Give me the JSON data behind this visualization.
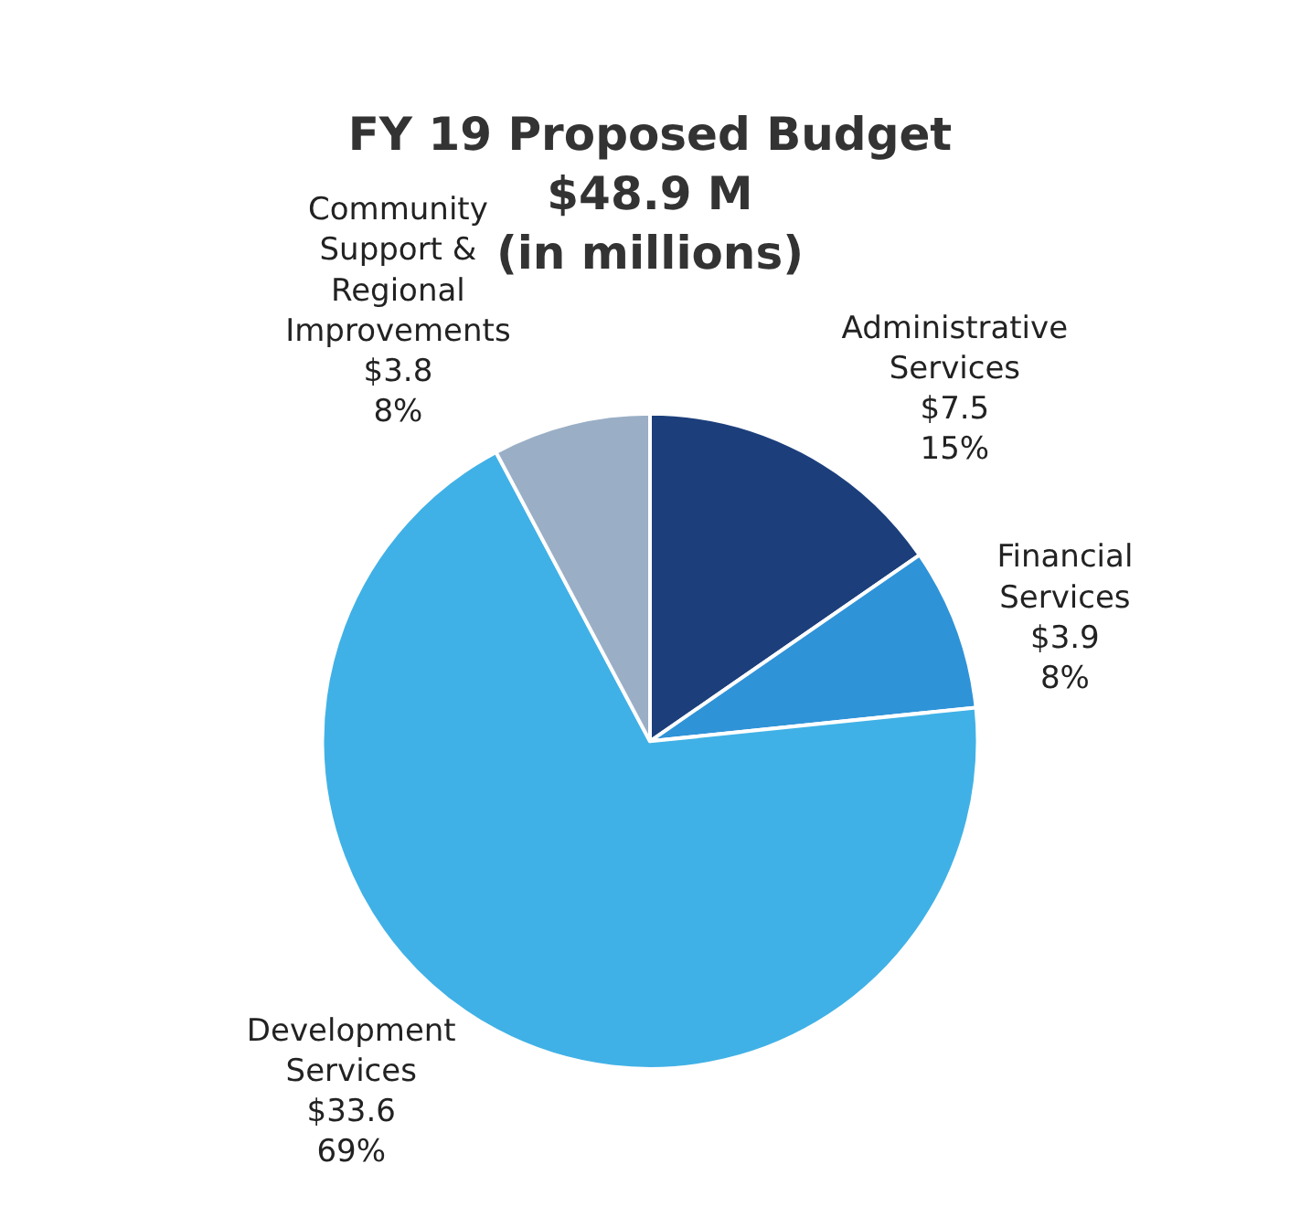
{
  "chart_data": {
    "type": "pie",
    "title": "FY 19 Proposed Budget\n$48.9 M\n(in millions)",
    "categories": [
      "Administrative Services",
      "Financial Services",
      "Development Services",
      "Community Support & Regional Improvements"
    ],
    "values": [
      7.5,
      3.9,
      33.6,
      3.8
    ],
    "value_labels": [
      "$7.5\n15%",
      "$3.9\n8%",
      "$33.6\n69%",
      "$3.8\n8%"
    ],
    "colors": [
      "#1c3f7c",
      "#2f93d8",
      "#40b1e6",
      "#9aafc6"
    ],
    "legend": false
  }
}
